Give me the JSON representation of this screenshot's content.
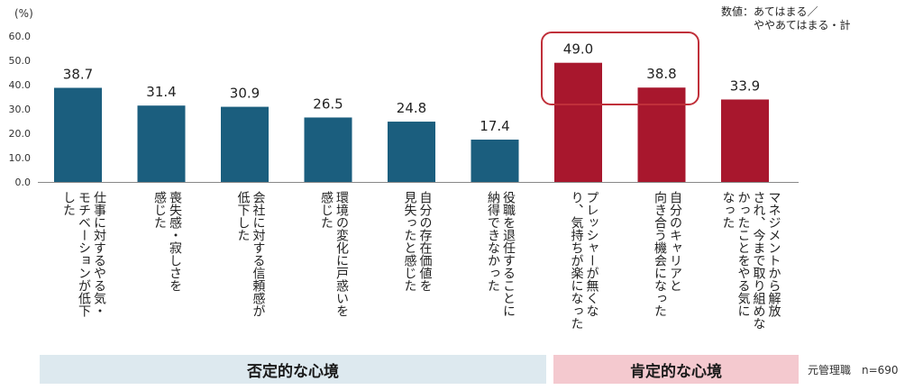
{
  "chart_data": {
    "type": "bar",
    "unit_label": "(%)",
    "note": "数値：あてはまる／\n　　　ややあてはまる・計",
    "ylim": [
      0,
      60
    ],
    "yticks": [
      "60.0",
      "50.0",
      "40.0",
      "30.0",
      "20.0",
      "10.0",
      "0.0"
    ],
    "categories": [
      "仕事に対するやる気・\nモチベーションが低下\nした",
      "喪失感・寂しさを\n感じた",
      "会社に対する信頼感が\n低下した",
      "環境の変化に戸惑いを\n感じた",
      "自分の存在価値を\n見失ったと感じた",
      "役職を退任することに\n納得できなかった",
      "プレッシャーが無くな\nり、気持ちが楽になった",
      "自分のキャリアと\n向き合う機会になった",
      "マネジメントから解放\nされ、今まで取り組めな\nかったことをやる気に\nなった"
    ],
    "values": [
      38.7,
      31.4,
      30.9,
      26.5,
      24.8,
      17.4,
      49.0,
      38.8,
      33.9
    ],
    "value_labels": [
      "38.7",
      "31.4",
      "30.9",
      "26.5",
      "24.8",
      "17.4",
      "49.0",
      "38.8",
      "33.9"
    ],
    "groups": [
      {
        "label": "否定的な心境",
        "color": "#1b5e7e"
      },
      {
        "label": "肯定的な心境",
        "color": "#a8172d"
      }
    ],
    "bar_group": [
      0,
      0,
      0,
      0,
      0,
      0,
      1,
      1,
      1
    ],
    "highlighted": [
      6,
      7
    ],
    "sample_size": "元管理職　n=690"
  }
}
